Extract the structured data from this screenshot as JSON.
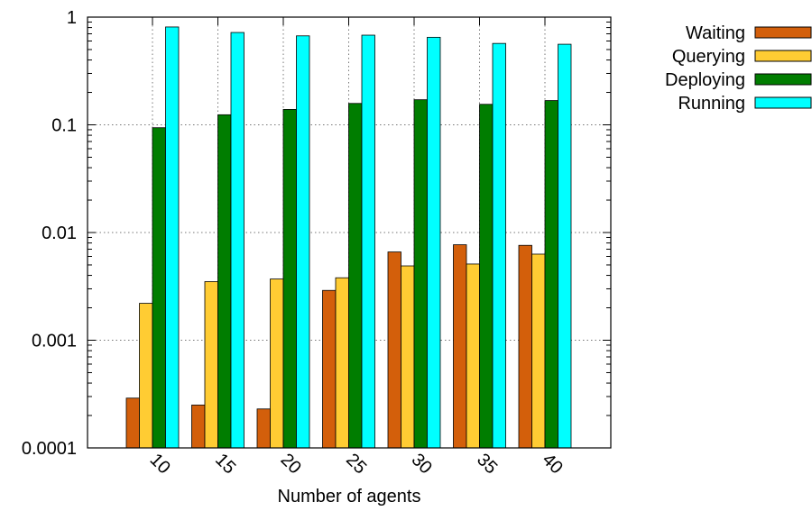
{
  "chart_data": {
    "type": "bar",
    "categories": [
      "10",
      "15",
      "20",
      "25",
      "30",
      "35",
      "40"
    ],
    "xlabel": "Number of agents",
    "ylabel": "",
    "title": "",
    "y_scale": "log",
    "ylim": [
      0.0001,
      1
    ],
    "yticks": [
      {
        "value": 0.0001,
        "label": "0.0001"
      },
      {
        "value": 0.001,
        "label": "0.001"
      },
      {
        "value": 0.01,
        "label": "0.01"
      },
      {
        "value": 0.1,
        "label": "0.1"
      },
      {
        "value": 1,
        "label": "1"
      }
    ],
    "grid": true,
    "legend_position": "outside-top-right",
    "series": [
      {
        "name": "Waiting",
        "color": "#d35f0b",
        "values": [
          0.00029,
          0.00025,
          0.00023,
          0.0029,
          0.0066,
          0.0077,
          0.0076
        ]
      },
      {
        "name": "Querying",
        "color": "#ffcc33",
        "values": [
          0.0022,
          0.0035,
          0.0037,
          0.0038,
          0.0049,
          0.0051,
          0.0063
        ]
      },
      {
        "name": "Deploying",
        "color": "#007d00",
        "values": [
          0.094,
          0.124,
          0.139,
          0.158,
          0.171,
          0.155,
          0.168
        ]
      },
      {
        "name": "Running",
        "color": "#00ffff",
        "values": [
          0.81,
          0.72,
          0.67,
          0.68,
          0.65,
          0.57,
          0.56
        ]
      }
    ]
  }
}
